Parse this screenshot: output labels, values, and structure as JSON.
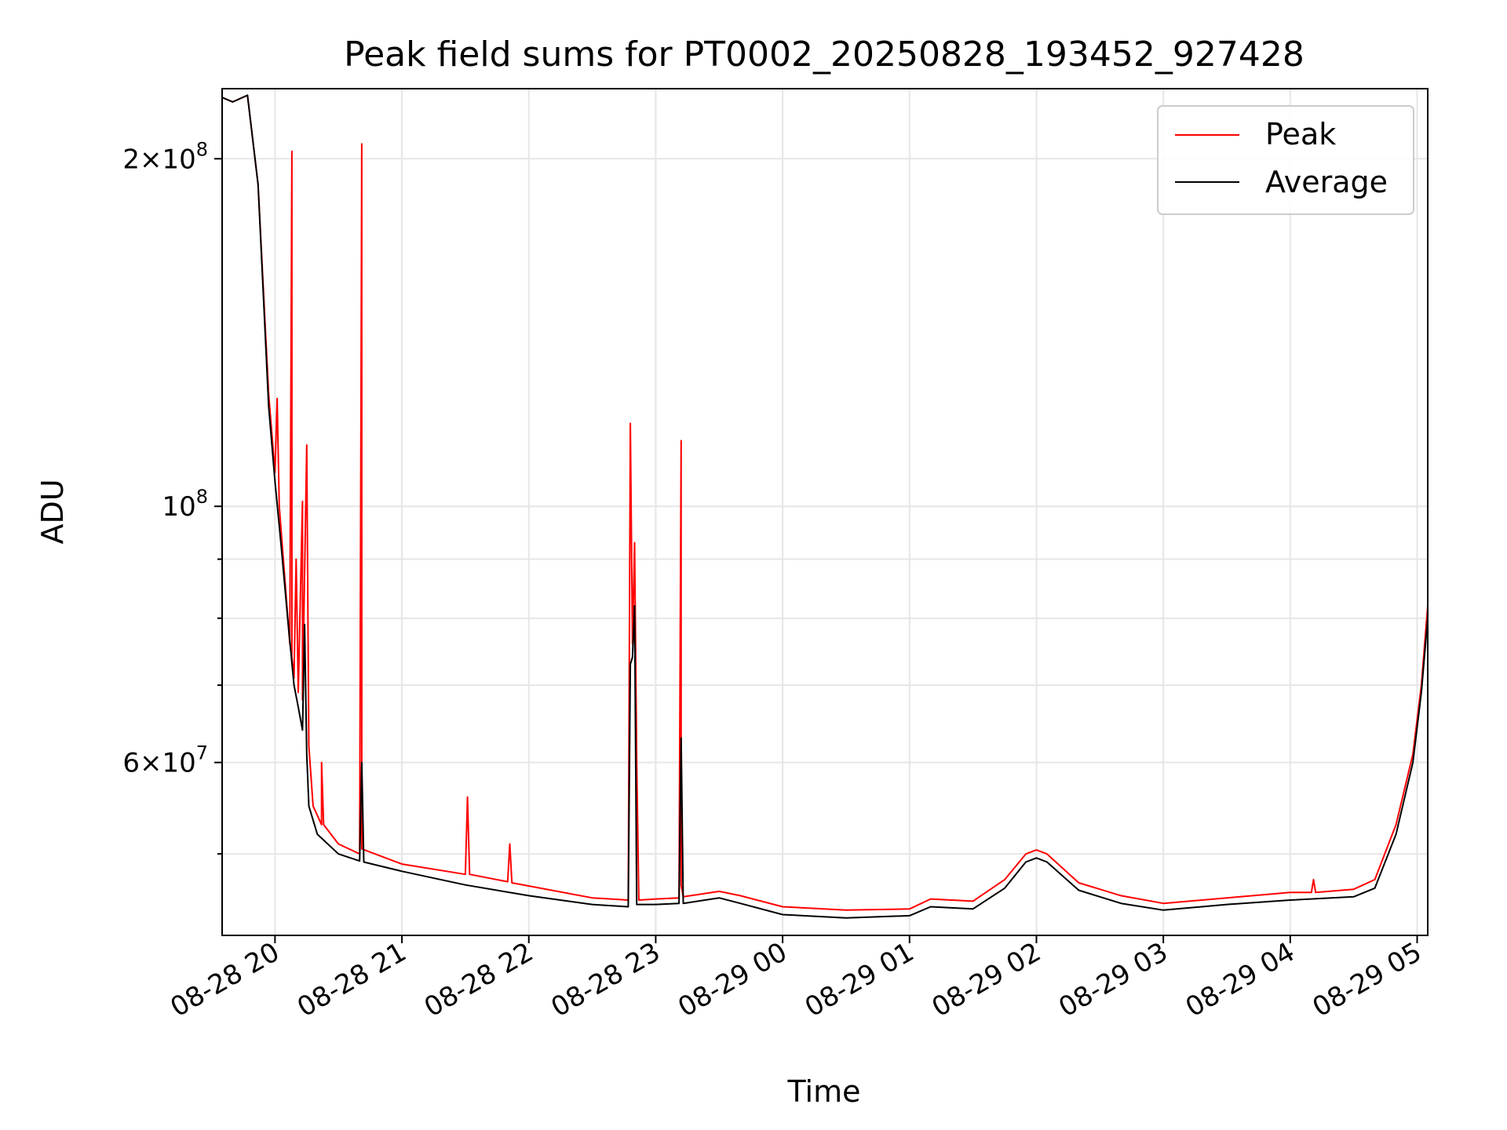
{
  "chart_data": {
    "type": "line",
    "title": "Peak field sums for PT0002_20250828_193452_927428",
    "xlabel": "Time",
    "ylabel": "ADU",
    "yscale": "log",
    "xlim": [
      "2025-08-28 19:35",
      "2025-08-29 05:05"
    ],
    "ylim": [
      42500000,
      230000000
    ],
    "grid": true,
    "legend_position": "top-right",
    "x_ticks": [
      {
        "t": "2025-08-28 20:00",
        "label": "08-28 20"
      },
      {
        "t": "2025-08-28 21:00",
        "label": "08-28 21"
      },
      {
        "t": "2025-08-28 22:00",
        "label": "08-28 22"
      },
      {
        "t": "2025-08-28 23:00",
        "label": "08-28 23"
      },
      {
        "t": "2025-08-29 00:00",
        "label": "08-29 00"
      },
      {
        "t": "2025-08-29 01:00",
        "label": "08-29 01"
      },
      {
        "t": "2025-08-29 02:00",
        "label": "08-29 02"
      },
      {
        "t": "2025-08-29 03:00",
        "label": "08-29 03"
      },
      {
        "t": "2025-08-29 04:00",
        "label": "08-29 04"
      },
      {
        "t": "2025-08-29 05:00",
        "label": "08-29 05"
      }
    ],
    "y_major_ticks": [
      {
        "value": 200000000,
        "mant": "2",
        "exp": "8"
      },
      {
        "value": 100000000,
        "mant": "",
        "exp": "8"
      },
      {
        "value": 60000000,
        "mant": "6",
        "exp": "7"
      }
    ],
    "y_minor_ticks": [
      50000000,
      70000000,
      80000000,
      90000000
    ],
    "series": [
      {
        "name": "Peak",
        "color": "#ff0000",
        "points": [
          [
            "2025-08-28 19:35",
            226000000
          ],
          [
            "2025-08-28 19:40",
            224000000
          ],
          [
            "2025-08-28 19:47",
            227000000
          ],
          [
            "2025-08-28 19:52",
            190000000
          ],
          [
            "2025-08-28 19:57",
            125000000
          ],
          [
            "2025-08-28 20:00",
            107000000
          ],
          [
            "2025-08-28 20:01",
            124000000
          ],
          [
            "2025-08-28 20:02",
            100000000
          ],
          [
            "2025-08-28 20:05",
            85000000
          ],
          [
            "2025-08-28 20:07",
            76000000
          ],
          [
            "2025-08-28 20:08",
            203000000
          ],
          [
            "2025-08-28 20:08",
            74000000
          ],
          [
            "2025-08-28 20:09",
            71000000
          ],
          [
            "2025-08-28 20:10",
            90000000
          ],
          [
            "2025-08-28 20:11",
            69000000
          ],
          [
            "2025-08-28 20:13",
            101000000
          ],
          [
            "2025-08-28 20:13",
            68000000
          ],
          [
            "2025-08-28 20:15",
            113000000
          ],
          [
            "2025-08-28 20:16",
            62000000
          ],
          [
            "2025-08-28 20:18",
            55000000
          ],
          [
            "2025-08-28 20:22",
            53000000
          ],
          [
            "2025-08-28 20:22",
            60000000
          ],
          [
            "2025-08-28 20:23",
            53000000
          ],
          [
            "2025-08-28 20:30",
            51000000
          ],
          [
            "2025-08-28 20:40",
            50000000
          ],
          [
            "2025-08-28 20:41",
            206000000
          ],
          [
            "2025-08-28 20:41",
            50500000
          ],
          [
            "2025-08-28 21:00",
            49000000
          ],
          [
            "2025-08-28 21:30",
            48000000
          ],
          [
            "2025-08-28 21:31",
            56000000
          ],
          [
            "2025-08-28 21:32",
            48000000
          ],
          [
            "2025-08-28 21:50",
            47300000
          ],
          [
            "2025-08-28 21:51",
            51000000
          ],
          [
            "2025-08-28 21:52",
            47200000
          ],
          [
            "2025-08-28 22:30",
            45800000
          ],
          [
            "2025-08-28 22:47",
            45600000
          ],
          [
            "2025-08-28 22:48",
            118000000
          ],
          [
            "2025-08-28 22:49",
            76000000
          ],
          [
            "2025-08-28 22:50",
            93000000
          ],
          [
            "2025-08-28 22:51",
            60000000
          ],
          [
            "2025-08-28 22:52",
            45600000
          ],
          [
            "2025-08-28 23:00",
            45700000
          ],
          [
            "2025-08-28 23:11",
            45800000
          ],
          [
            "2025-08-28 23:12",
            114000000
          ],
          [
            "2025-08-28 23:12",
            47000000
          ],
          [
            "2025-08-28 23:13",
            45900000
          ],
          [
            "2025-08-28 23:30",
            46400000
          ],
          [
            "2025-08-28 23:40",
            46000000
          ],
          [
            "2025-08-29 00:00",
            45000000
          ],
          [
            "2025-08-29 00:30",
            44700000
          ],
          [
            "2025-08-29 01:00",
            44800000
          ],
          [
            "2025-08-29 01:10",
            45700000
          ],
          [
            "2025-08-29 01:30",
            45500000
          ],
          [
            "2025-08-29 01:45",
            47500000
          ],
          [
            "2025-08-29 01:55",
            50000000
          ],
          [
            "2025-08-29 02:00",
            50400000
          ],
          [
            "2025-08-29 02:05",
            50000000
          ],
          [
            "2025-08-29 02:20",
            47200000
          ],
          [
            "2025-08-29 02:40",
            46000000
          ],
          [
            "2025-08-29 03:00",
            45300000
          ],
          [
            "2025-08-29 03:30",
            45800000
          ],
          [
            "2025-08-29 04:00",
            46300000
          ],
          [
            "2025-08-29 04:10",
            46300000
          ],
          [
            "2025-08-29 04:11",
            47500000
          ],
          [
            "2025-08-29 04:12",
            46300000
          ],
          [
            "2025-08-29 04:30",
            46600000
          ],
          [
            "2025-08-29 04:40",
            47500000
          ],
          [
            "2025-08-29 04:50",
            53000000
          ],
          [
            "2025-08-29 04:58",
            61000000
          ],
          [
            "2025-08-29 05:02",
            70000000
          ],
          [
            "2025-08-29 05:05",
            82000000
          ]
        ]
      },
      {
        "name": "Average",
        "color": "#000000",
        "points": [
          [
            "2025-08-28 19:35",
            226000000
          ],
          [
            "2025-08-28 19:40",
            224000000
          ],
          [
            "2025-08-28 19:47",
            227000000
          ],
          [
            "2025-08-28 19:52",
            190000000
          ],
          [
            "2025-08-28 19:57",
            122000000
          ],
          [
            "2025-08-28 20:00",
            105000000
          ],
          [
            "2025-08-28 20:03",
            92000000
          ],
          [
            "2025-08-28 20:06",
            80000000
          ],
          [
            "2025-08-28 20:09",
            70000000
          ],
          [
            "2025-08-28 20:11",
            67000000
          ],
          [
            "2025-08-28 20:13",
            64000000
          ],
          [
            "2025-08-28 20:14",
            79000000
          ],
          [
            "2025-08-28 20:15",
            61000000
          ],
          [
            "2025-08-28 20:16",
            55000000
          ],
          [
            "2025-08-28 20:20",
            52000000
          ],
          [
            "2025-08-28 20:30",
            50000000
          ],
          [
            "2025-08-28 20:40",
            49300000
          ],
          [
            "2025-08-28 20:41",
            60000000
          ],
          [
            "2025-08-28 20:42",
            49200000
          ],
          [
            "2025-08-28 21:00",
            48300000
          ],
          [
            "2025-08-28 21:30",
            47000000
          ],
          [
            "2025-08-28 22:00",
            46000000
          ],
          [
            "2025-08-28 22:30",
            45200000
          ],
          [
            "2025-08-28 22:47",
            45000000
          ],
          [
            "2025-08-28 22:48",
            73000000
          ],
          [
            "2025-08-28 22:49",
            74000000
          ],
          [
            "2025-08-28 22:50",
            82000000
          ],
          [
            "2025-08-28 22:51",
            45200000
          ],
          [
            "2025-08-28 23:00",
            45200000
          ],
          [
            "2025-08-28 23:11",
            45300000
          ],
          [
            "2025-08-28 23:12",
            63000000
          ],
          [
            "2025-08-28 23:13",
            45300000
          ],
          [
            "2025-08-28 23:30",
            45800000
          ],
          [
            "2025-08-28 23:40",
            45300000
          ],
          [
            "2025-08-29 00:00",
            44300000
          ],
          [
            "2025-08-29 00:30",
            44000000
          ],
          [
            "2025-08-29 01:00",
            44200000
          ],
          [
            "2025-08-29 01:10",
            45000000
          ],
          [
            "2025-08-29 01:30",
            44800000
          ],
          [
            "2025-08-29 01:45",
            46700000
          ],
          [
            "2025-08-29 01:55",
            49200000
          ],
          [
            "2025-08-29 02:00",
            49600000
          ],
          [
            "2025-08-29 02:05",
            49200000
          ],
          [
            "2025-08-29 02:20",
            46500000
          ],
          [
            "2025-08-29 02:40",
            45300000
          ],
          [
            "2025-08-29 03:00",
            44700000
          ],
          [
            "2025-08-29 03:30",
            45200000
          ],
          [
            "2025-08-29 04:00",
            45600000
          ],
          [
            "2025-08-29 04:30",
            45900000
          ],
          [
            "2025-08-29 04:40",
            46700000
          ],
          [
            "2025-08-29 04:50",
            52000000
          ],
          [
            "2025-08-29 04:58",
            60000000
          ],
          [
            "2025-08-29 05:02",
            69000000
          ],
          [
            "2025-08-29 05:05",
            80000000
          ]
        ]
      }
    ]
  }
}
